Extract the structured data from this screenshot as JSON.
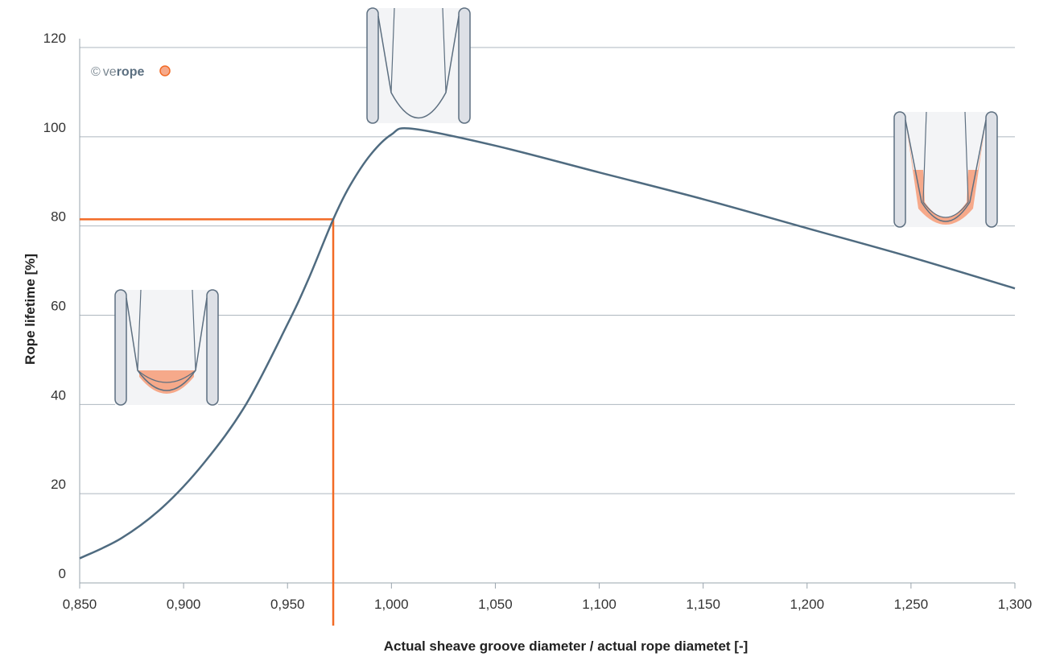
{
  "chart_data": {
    "type": "line",
    "title": "",
    "xlabel": "Actual sheave groove diameter / actual rope diametet [-]",
    "ylabel": "Rope lifetime [%]",
    "xlim": [
      0.85,
      1.3
    ],
    "ylim": [
      0,
      120
    ],
    "x_ticks": [
      0.85,
      0.9,
      0.95,
      1.0,
      1.05,
      1.1,
      1.15,
      1.2,
      1.25,
      1.3
    ],
    "x_tick_labels": [
      "0,850",
      "0,900",
      "0,950",
      "1,000",
      "1,050",
      "1,100",
      "1,150",
      "1,200",
      "1,250",
      "1,300"
    ],
    "y_ticks": [
      0,
      20,
      40,
      60,
      80,
      100,
      120
    ],
    "y_tick_labels": [
      "0",
      "20",
      "40",
      "60",
      "80",
      "100",
      "120"
    ],
    "grid": true,
    "series": [
      {
        "color": "#4f6b80",
        "x": [
          0.85,
          0.87,
          0.89,
          0.91,
          0.93,
          0.95,
          0.96,
          0.972,
          0.98,
          0.99,
          1.0,
          1.01,
          1.05,
          1.1,
          1.15,
          1.2,
          1.25,
          1.3
        ],
        "y": [
          5.5,
          10,
          17,
          27,
          40,
          58,
          68,
          81.5,
          89,
          96,
          100.5,
          101.8,
          98,
          92,
          86,
          79.5,
          73,
          66
        ]
      }
    ],
    "annotations": {
      "highlight_point": {
        "x": 0.972,
        "y": 81.5
      },
      "highlight_color": "#f26a25"
    }
  },
  "logo": {
    "copyright": "©",
    "prefix": "ve",
    "bold": "rope"
  },
  "colors": {
    "grid": "#aeb7bf",
    "axis": "#9aa4ad",
    "curve": "#4f6b80",
    "highlight": "#f26a25",
    "wear_fill": "#f6a98a",
    "sheave_fill": "#dde0e6",
    "sheave_stroke": "#5d6f80"
  }
}
